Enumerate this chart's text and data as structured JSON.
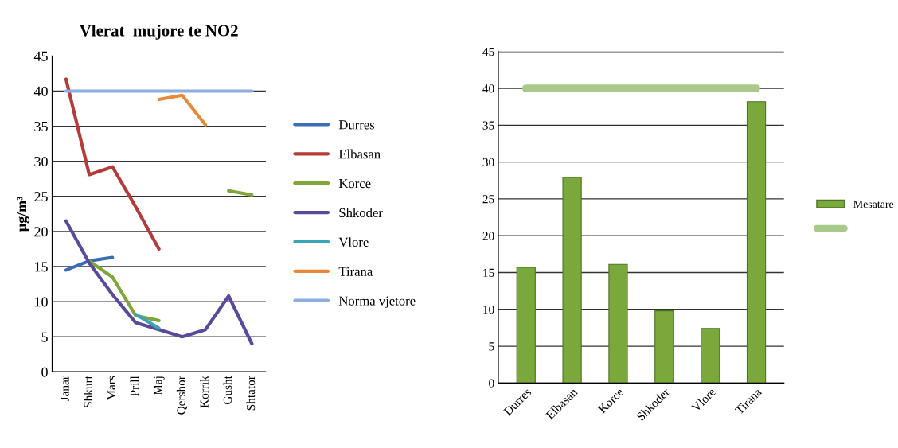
{
  "chart_data": [
    {
      "type": "line",
      "title": "Vlerat  mujore te NO2",
      "ylabel": "µg/m³",
      "categories": [
        "Janar",
        "Shkurt",
        "Mars",
        "Prill",
        "Maj",
        "Qershor",
        "Korrik",
        "Gusht",
        "Shtator"
      ],
      "series": [
        {
          "name": "Durres",
          "color": "#3a6db4",
          "values": [
            14.5,
            15.8,
            16.3,
            null,
            null,
            null,
            null,
            null,
            null
          ]
        },
        {
          "name": "Elbasan",
          "color": "#b53a3a",
          "values": [
            41.7,
            28.1,
            29.2,
            23.5,
            17.5,
            null,
            null,
            null,
            null
          ]
        },
        {
          "name": "Korce",
          "color": "#7ea63a",
          "values": [
            null,
            15.8,
            13.5,
            8.0,
            7.3,
            null,
            null,
            25.8,
            25.2
          ]
        },
        {
          "name": "Shkoder",
          "color": "#5b4a9a",
          "values": [
            21.5,
            15.5,
            11.0,
            7.0,
            6.0,
            5.0,
            6.0,
            10.8,
            4.0
          ]
        },
        {
          "name": "Vlore",
          "color": "#3aa3b8",
          "values": [
            null,
            null,
            null,
            8.2,
            6.2,
            null,
            null,
            null,
            null
          ]
        },
        {
          "name": "Tirana",
          "color": "#e8893a",
          "values": [
            null,
            null,
            null,
            null,
            38.8,
            39.4,
            35.2,
            null,
            null
          ]
        },
        {
          "name": "Norma vjetore",
          "color": "#8eaedf",
          "values": [
            40,
            40,
            40,
            40,
            40,
            40,
            40,
            40,
            40
          ]
        }
      ],
      "ylim": [
        0,
        45
      ],
      "yticks": [
        0,
        5,
        10,
        15,
        20,
        25,
        30,
        35,
        40,
        45
      ],
      "grid": "y",
      "legend": "right",
      "marker": "none",
      "line_style": "solid"
    },
    {
      "type": "bar",
      "categories": [
        "Durres",
        "Elbasan",
        "Korce",
        "Shkoder",
        "Vlore",
        "Tirana"
      ],
      "series": [
        {
          "name": "Mesatare",
          "color": "#7aa83a",
          "values": [
            15.7,
            27.9,
            16.1,
            9.8,
            7.4,
            38.2
          ]
        },
        {
          "type": "line",
          "color": "#a9c98a",
          "values": [
            40,
            40,
            40,
            40,
            40,
            40
          ]
        }
      ],
      "ylim": [
        0,
        45
      ],
      "yticks": [
        0,
        5,
        10,
        15,
        20,
        25,
        30,
        35,
        40,
        45
      ],
      "grid": "y",
      "legend": "right"
    }
  ]
}
